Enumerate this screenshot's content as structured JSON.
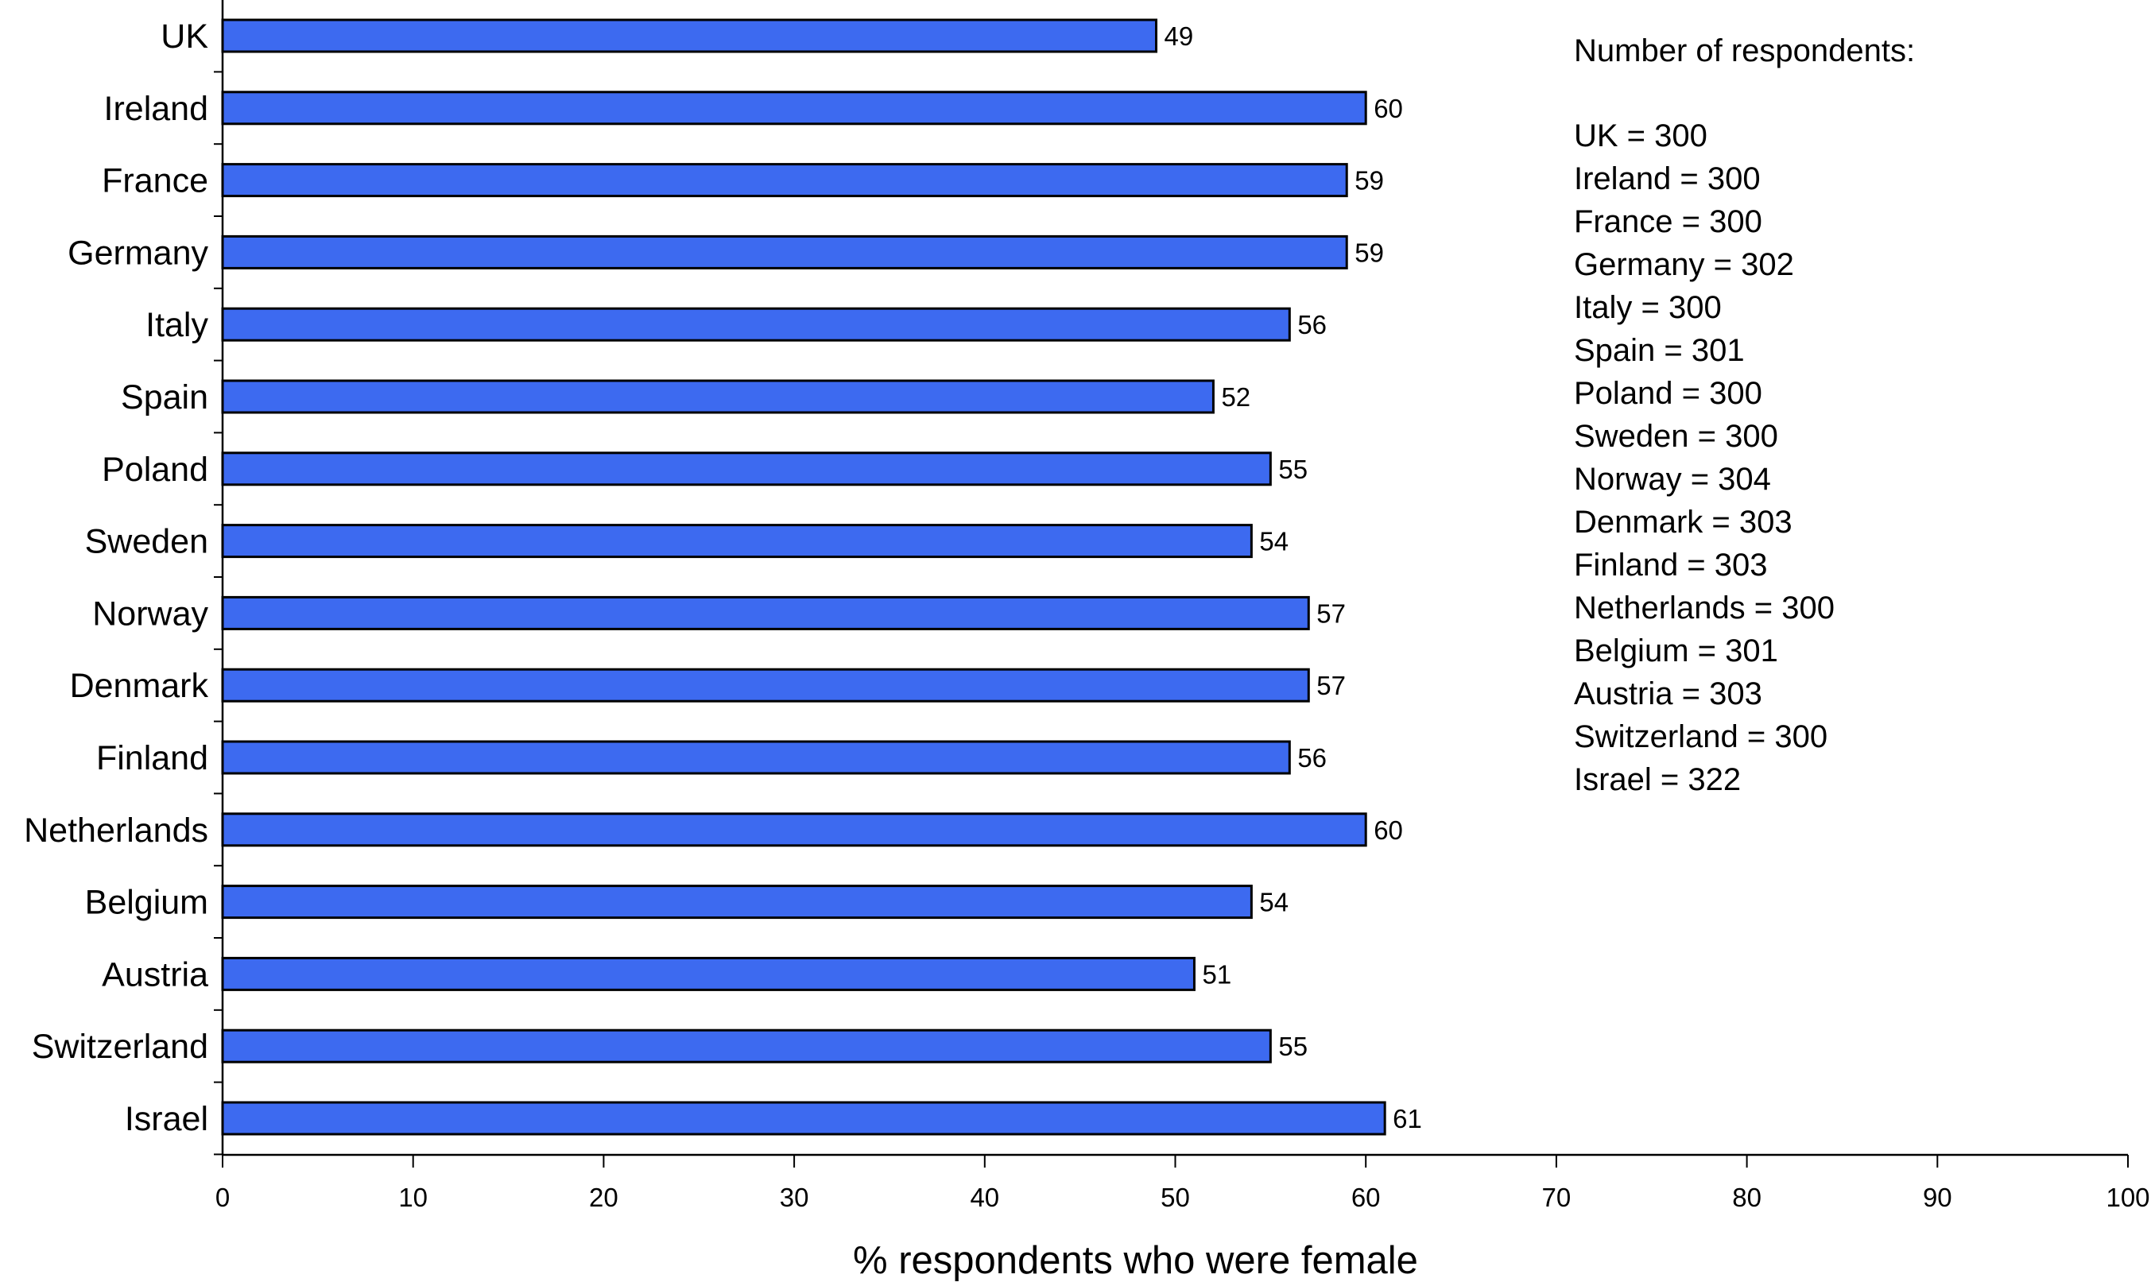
{
  "chart_data": {
    "type": "bar",
    "orientation": "horizontal",
    "categories": [
      "UK",
      "Ireland",
      "France",
      "Germany",
      "Italy",
      "Spain",
      "Poland",
      "Sweden",
      "Norway",
      "Denmark",
      "Finland",
      "Netherlands",
      "Belgium",
      "Austria",
      "Switzerland",
      "Israel"
    ],
    "values": [
      49,
      60,
      59,
      59,
      56,
      52,
      55,
      54,
      57,
      57,
      56,
      60,
      54,
      51,
      55,
      61
    ],
    "data_labels": [
      "49",
      "60",
      "59",
      "59",
      "56",
      "52",
      "55",
      "54",
      "57",
      "57",
      "56",
      "60",
      "54",
      "51",
      "55",
      "61"
    ],
    "title": "",
    "xlabel": "%  respondents who were female",
    "ylabel": "",
    "xlim": [
      0,
      100
    ],
    "xticks": [
      0,
      10,
      20,
      30,
      40,
      50,
      60,
      70,
      80,
      90,
      100
    ],
    "bar_color": "#3d6af0",
    "bar_edge_color": "#000000",
    "grid": false,
    "legend": "none",
    "annotation": {
      "heading": "Number of respondents:",
      "lines": [
        "UK = 300",
        "Ireland = 300",
        "France = 300",
        "Germany = 302",
        "Italy = 300",
        "Spain = 301",
        "Poland = 300",
        "Sweden = 300",
        "Norway = 304",
        "Denmark = 303",
        "Finland = 303",
        "Netherlands = 300",
        "Belgium = 301",
        "Austria = 303",
        "Switzerland = 300",
        "Israel = 322"
      ]
    }
  }
}
